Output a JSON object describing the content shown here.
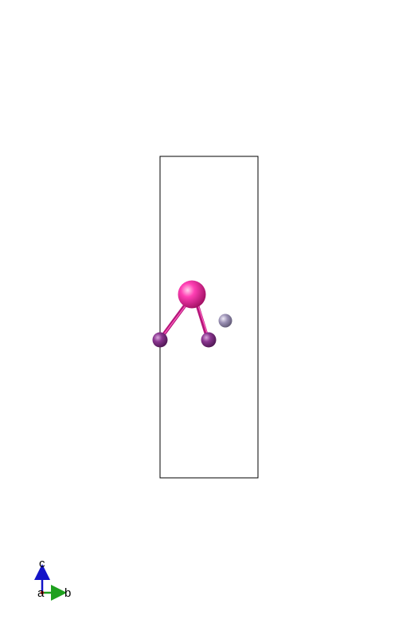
{
  "structure": {
    "atoms": [
      {
        "id": "atom-large",
        "color": "#e0198c",
        "role": "large magenta atom"
      },
      {
        "id": "atom-left",
        "color": "#7a2a7e",
        "role": "purple atom"
      },
      {
        "id": "atom-right",
        "color": "#7a2a7e",
        "role": "purple atom"
      },
      {
        "id": "atom-small",
        "color": "#8f84a8",
        "role": "small grey-lavender atom"
      }
    ],
    "bonds": [
      {
        "from": "atom-large",
        "to": "atom-left"
      },
      {
        "from": "atom-large",
        "to": "atom-right"
      }
    ],
    "cell_color": "#000000"
  },
  "axes": {
    "c": {
      "label": "c",
      "color": "#1414c8"
    },
    "b": {
      "label": "b",
      "color": "#1ea01e"
    },
    "a": {
      "label": "a",
      "color": "#c81414"
    }
  }
}
